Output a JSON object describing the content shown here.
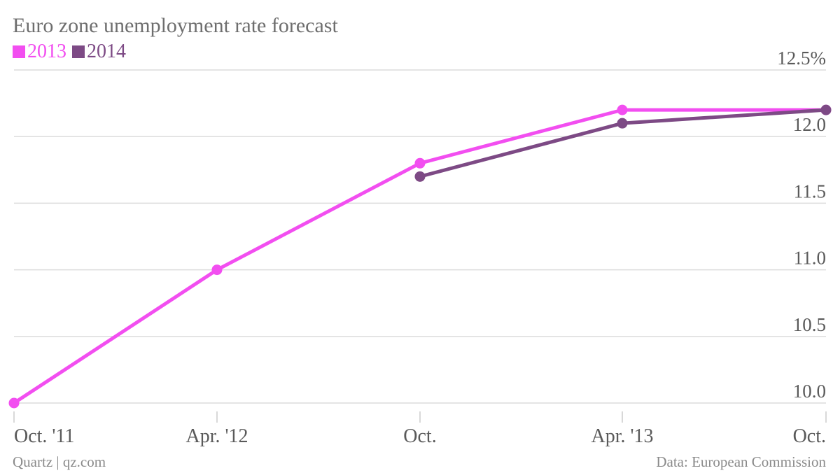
{
  "chart_data": {
    "type": "line",
    "title": "Euro zone unemployment rate forecast",
    "categories": [
      "Oct. '11",
      "Apr. '12",
      "Oct.",
      "Apr. '13",
      "Oct."
    ],
    "series": [
      {
        "name": "2013",
        "color": "#f24ef0",
        "values": [
          10.0,
          11.0,
          11.8,
          12.2,
          12.2
        ]
      },
      {
        "name": "2014",
        "color": "#7d4a85",
        "values": [
          null,
          null,
          11.7,
          12.1,
          12.2
        ]
      }
    ],
    "y_ticks": [
      {
        "value": 12.5,
        "label": "12.5%"
      },
      {
        "value": 12.0,
        "label": "12.0"
      },
      {
        "value": 11.5,
        "label": "11.5"
      },
      {
        "value": 11.0,
        "label": "11.0"
      },
      {
        "value": 10.5,
        "label": "10.5"
      },
      {
        "value": 10.0,
        "label": "10.0"
      }
    ],
    "ylim": [
      10.0,
      12.5
    ],
    "grid": true,
    "legend_position": "top-left"
  },
  "footer": {
    "source_left": "Quartz | qz.com",
    "source_right": "Data: European Commission"
  }
}
